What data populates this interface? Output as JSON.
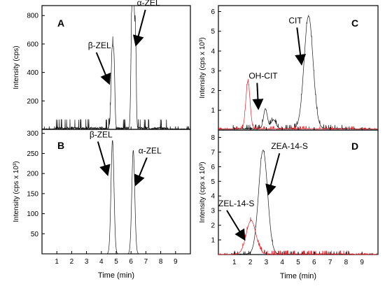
{
  "chart_data": [
    {
      "panel": "A",
      "type": "line",
      "ylabel": "Intensity (cps)",
      "xlabel": "",
      "xlim": [
        0,
        10
      ],
      "ylim": [
        0,
        870
      ],
      "xticks": [
        1,
        2,
        3,
        4,
        5,
        6,
        7,
        8,
        9
      ],
      "yticks": [
        200,
        400,
        600,
        800
      ],
      "series": [
        {
          "color": "#1a1a1a",
          "peaks": [
            {
              "center": 4.72,
              "height": 520,
              "width": 0.07
            },
            {
              "center": 4.85,
              "height": 440,
              "width": 0.06
            },
            {
              "center": 6.05,
              "height": 760,
              "width": 0.06
            },
            {
              "center": 6.18,
              "height": 820,
              "width": 0.06
            },
            {
              "center": 6.3,
              "height": 560,
              "width": 0.05
            }
          ],
          "noise": 40,
          "baseline": 0
        }
      ],
      "annotations": [
        {
          "text": "β-ZEL",
          "x": 3.1,
          "y": 570,
          "target_x": 4.5,
          "target_y": 330
        },
        {
          "text": "α-ZEL",
          "x": 6.4,
          "y": 870,
          "target_x": 6.35,
          "target_y": 600
        }
      ]
    },
    {
      "panel": "B",
      "type": "line",
      "ylabel": "Intensity (cps x 10³)",
      "xlabel": "Time (min)",
      "xlim": [
        0,
        10
      ],
      "ylim": [
        0,
        310
      ],
      "xticks": [
        1,
        2,
        3,
        4,
        5,
        6,
        7,
        8,
        9
      ],
      "yticks": [
        50,
        100,
        150,
        200,
        250,
        300
      ],
      "series": [
        {
          "color": "#1a1a1a",
          "peaks": [
            {
              "center": 4.75,
              "height": 283,
              "width": 0.1
            },
            {
              "center": 6.15,
              "height": 258,
              "width": 0.1
            }
          ],
          "noise": 0,
          "baseline": 0
        }
      ],
      "annotations": [
        {
          "text": "β-ZEL",
          "x": 3.2,
          "y": 290,
          "target_x": 4.4,
          "target_y": 200
        },
        {
          "text": "α-ZEL",
          "x": 6.5,
          "y": 250,
          "target_x": 6.35,
          "target_y": 175
        }
      ]
    },
    {
      "panel": "C",
      "type": "line",
      "ylabel": "Intensity (cps x 10³)",
      "xlabel": "",
      "xlim": [
        0,
        10
      ],
      "ylim": [
        0,
        6.3
      ],
      "xticks": [
        1,
        2,
        3,
        4,
        5,
        6,
        7,
        8,
        9
      ],
      "yticks": [
        1,
        2,
        3,
        4,
        5,
        6
      ],
      "series": [
        {
          "color": "#1a1a1a",
          "peaks": [
            {
              "center": 2.95,
              "height": 1.0,
              "width": 0.12
            },
            {
              "center": 3.45,
              "height": 0.45,
              "width": 0.15
            },
            {
              "center": 5.65,
              "height": 5.7,
              "width": 0.28
            }
          ],
          "noise": 0.12,
          "baseline": 0.05
        },
        {
          "color": "#e8202a",
          "peaks": [
            {
              "center": 1.85,
              "height": 2.4,
              "width": 0.13
            }
          ],
          "noise": 0.08,
          "baseline": 0.05
        }
      ],
      "annotations": [
        {
          "text": "CIT",
          "x": 4.4,
          "y": 5.4,
          "target_x": 5.2,
          "target_y": 3.4
        },
        {
          "text": "OH-CIT",
          "x": 1.9,
          "y": 2.6,
          "target_x": 2.5,
          "target_y": 1.15
        }
      ]
    },
    {
      "panel": "D",
      "type": "line",
      "ylabel": "Intensity (cps x 10³)",
      "xlabel": "Time (min)",
      "xlim": [
        0,
        10
      ],
      "ylim": [
        0,
        8.5
      ],
      "xticks": [
        1,
        2,
        3,
        4,
        5,
        6,
        7,
        8,
        9
      ],
      "yticks": [
        1,
        2,
        3,
        4,
        5,
        6,
        7,
        8
      ],
      "series": [
        {
          "color": "#1a1a1a",
          "peaks": [
            {
              "center": 2.8,
              "height": 7.1,
              "width": 0.28
            }
          ],
          "noise": 0.12,
          "baseline": 0
        },
        {
          "color": "#e8202a",
          "peaks": [
            {
              "center": 2.05,
              "height": 2.3,
              "width": 0.3
            }
          ],
          "noise": 0.15,
          "baseline": 0
        }
      ],
      "annotations": [
        {
          "text": "ZEA-14-S",
          "x": 3.3,
          "y": 7.2,
          "target_x": 3.15,
          "target_y": 4.2
        },
        {
          "text": "ZEL-14-S",
          "x": 0.0,
          "y": 3.3,
          "target_x": 1.6,
          "target_y": 1.1
        }
      ]
    }
  ]
}
